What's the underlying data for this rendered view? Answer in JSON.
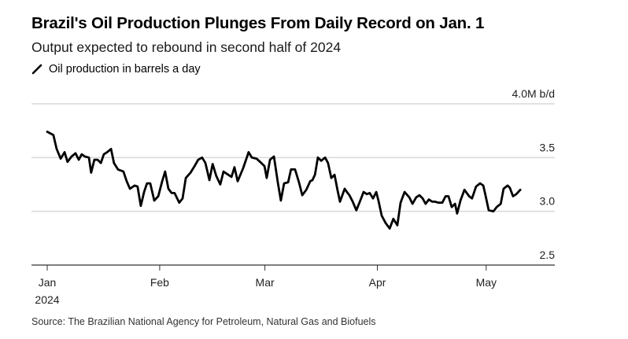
{
  "header": {
    "title": "Brazil's Oil Production Plunges From Daily Record on Jan. 1",
    "subtitle": "Output expected to rebound in second half of 2024",
    "legend_label": "Oil production in barrels a day",
    "legend_icon": "line-swatch-icon"
  },
  "source": "Source: The Brazilian National Agency for Petroleum, Natural Gas and Biofuels",
  "colors": {
    "line": "#000000",
    "grid": "#d9d9d9",
    "axis": "#333333"
  },
  "chart_data": {
    "type": "line",
    "title": "Brazil's Oil Production Plunges From Daily Record on Jan. 1",
    "subtitle": "Output expected to rebound in second half of 2024",
    "xlabel": "",
    "ylabel": "",
    "x_unit": "days since Jan 1, 2024",
    "xlim": [
      0,
      140
    ],
    "ylim": [
      2.5,
      4.0
    ],
    "grid": true,
    "legend": "top-left",
    "y_ticks": [
      {
        "value": 4.0,
        "label": "4.0M b/d"
      },
      {
        "value": 3.5,
        "label": "3.5"
      },
      {
        "value": 3.0,
        "label": "3.0"
      },
      {
        "value": 2.5,
        "label": "2.5"
      }
    ],
    "x_ticks": [
      {
        "value": 0,
        "label": "Jan",
        "sublabel": "2024"
      },
      {
        "value": 31,
        "label": "Feb"
      },
      {
        "value": 60,
        "label": "Mar"
      },
      {
        "value": 91,
        "label": "Apr"
      },
      {
        "value": 121,
        "label": "May"
      }
    ],
    "series": [
      {
        "name": "Oil production in barrels a day",
        "unit": "M b/d",
        "x": [
          0,
          1.7,
          2.6,
          3.7,
          4.8,
          5.6,
          6.7,
          7.8,
          8.7,
          9.5,
          10.4,
          11.5,
          12.1,
          13.0,
          13.9,
          14.8,
          15.6,
          16.5,
          17.6,
          18.4,
          19.5,
          21.0,
          21.9,
          22.8,
          24.1,
          24.9,
          25.8,
          26.7,
          27.5,
          28.4,
          29.5,
          30.6,
          31.7,
          32.5,
          33.4,
          34.3,
          35.1,
          36.4,
          37.3,
          38.2,
          39.5,
          40.6,
          41.6,
          42.7,
          43.6,
          44.7,
          45.6,
          46.6,
          47.7,
          48.6,
          49.9,
          50.8,
          51.6,
          52.5,
          54.0,
          55.5,
          56.4,
          57.7,
          59.0,
          59.9,
          60.5,
          61.4,
          62.5,
          63.6,
          64.4,
          65.3,
          66.4,
          67.2,
          68.3,
          69.4,
          70.3,
          71.4,
          72.5,
          73.1,
          73.8,
          74.6,
          75.5,
          76.6,
          77.4,
          78.3,
          79.2,
          80.0,
          80.7,
          82.0,
          82.6,
          83.3,
          84.2,
          85.2,
          86.3,
          87.2,
          88.1,
          88.9,
          89.8,
          90.7,
          91.3,
          92.2,
          93.3,
          94.4,
          95.4,
          96.5,
          97.4,
          98.5,
          99.8,
          100.7,
          101.7,
          102.6,
          103.5,
          104.3,
          105.2,
          106.1,
          106.9,
          107.8,
          108.9,
          109.8,
          110.6,
          111.5,
          112.4,
          113.0,
          113.9,
          115.0,
          116.3,
          117.1,
          118.2,
          119.3,
          120.2,
          120.8,
          121.7,
          123.0,
          123.9,
          125.0,
          125.8,
          126.9,
          127.5,
          128.4,
          129.3,
          130.4
        ],
        "values": [
          3.74,
          3.71,
          3.58,
          3.49,
          3.55,
          3.46,
          3.51,
          3.54,
          3.48,
          3.53,
          3.51,
          3.5,
          3.36,
          3.48,
          3.48,
          3.45,
          3.53,
          3.55,
          3.58,
          3.45,
          3.39,
          3.37,
          3.28,
          3.21,
          3.24,
          3.23,
          3.05,
          3.18,
          3.26,
          3.26,
          3.1,
          3.14,
          3.28,
          3.37,
          3.21,
          3.17,
          3.17,
          3.08,
          3.12,
          3.31,
          3.36,
          3.42,
          3.48,
          3.5,
          3.45,
          3.29,
          3.44,
          3.33,
          3.25,
          3.37,
          3.34,
          3.32,
          3.41,
          3.28,
          3.4,
          3.55,
          3.5,
          3.49,
          3.45,
          3.42,
          3.31,
          3.48,
          3.51,
          3.26,
          3.1,
          3.26,
          3.27,
          3.39,
          3.39,
          3.27,
          3.15,
          3.2,
          3.28,
          3.29,
          3.34,
          3.5,
          3.47,
          3.5,
          3.45,
          3.31,
          3.34,
          3.2,
          3.09,
          3.21,
          3.18,
          3.15,
          3.09,
          3.01,
          3.1,
          3.18,
          3.16,
          3.17,
          3.12,
          3.18,
          3.1,
          2.96,
          2.89,
          2.84,
          2.93,
          2.87,
          3.08,
          3.18,
          3.13,
          3.07,
          3.13,
          3.15,
          3.12,
          3.07,
          3.11,
          3.09,
          3.09,
          3.08,
          3.08,
          3.14,
          3.14,
          3.04,
          3.07,
          2.98,
          3.1,
          3.2,
          3.14,
          3.12,
          3.23,
          3.26,
          3.24,
          3.15,
          3.01,
          3.0,
          3.04,
          3.07,
          3.21,
          3.24,
          3.22,
          3.14,
          3.16,
          3.2
        ]
      }
    ]
  }
}
